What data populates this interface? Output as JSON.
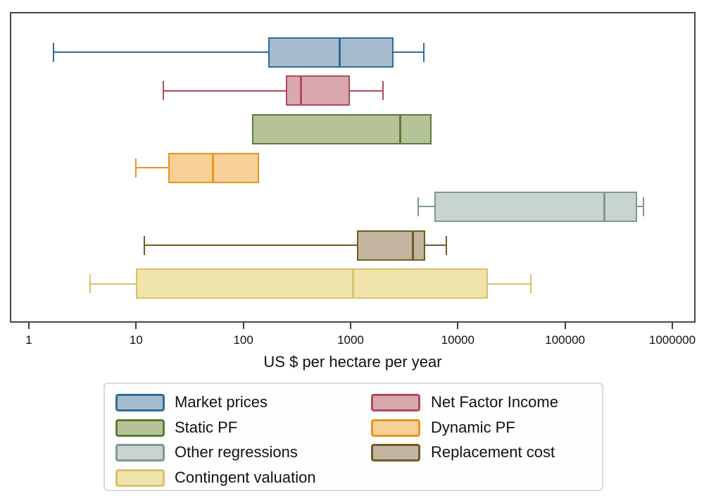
{
  "chart_data": {
    "type": "box",
    "orientation": "horizontal",
    "xlabel": "US $ per hectare per year",
    "x_scale": "log10",
    "x_range": [
      1,
      1000000
    ],
    "x_tick_labels": [
      "1",
      "10",
      "100",
      "1000",
      "10000",
      "100000",
      "1000000"
    ],
    "x_tick_values": [
      1,
      10,
      100,
      1000,
      10000,
      100000,
      1000000
    ],
    "grid": false,
    "legend_position": "bottom",
    "legend_columns": 2,
    "series": [
      {
        "name": "Market prices",
        "fill": "#a7bbce",
        "stroke": "#2e6d97",
        "whisker_low": 1.7,
        "q1": 170,
        "median": 780,
        "q3": 2500,
        "whisker_high": 4800
      },
      {
        "name": "Net Factor Income",
        "fill": "#d9a8af",
        "stroke": "#b04a5c",
        "whisker_low": 18,
        "q1": 250,
        "median": 340,
        "q3": 980,
        "whisker_high": 2000
      },
      {
        "name": "Static PF",
        "fill": "#b6c29a",
        "stroke": "#5e7c33",
        "whisker_low": 120,
        "q1": 120,
        "median": 2900,
        "q3": 5700,
        "whisker_high": 5700
      },
      {
        "name": "Dynamic PF",
        "fill": "#f7d097",
        "stroke": "#e8951c",
        "whisker_low": 10,
        "q1": 20,
        "median": 52,
        "q3": 140,
        "whisker_high": 140
      },
      {
        "name": "Other regressions",
        "fill": "#c7d4cf",
        "stroke": "#81978f",
        "whisker_low": 4300,
        "q1": 6000,
        "median": 230000,
        "q3": 470000,
        "whisker_high": 540000
      },
      {
        "name": "Replacement cost",
        "fill": "#c3b59f",
        "stroke": "#6e5c25",
        "whisker_low": 12,
        "q1": 1150,
        "median": 3800,
        "q3": 5000,
        "whisker_high": 7800
      },
      {
        "name": "Contingent valuation",
        "fill": "#f0e3ac",
        "stroke": "#d8c26c",
        "whisker_low": 3.7,
        "q1": 10,
        "median": 1050,
        "q3": 19000,
        "whisker_high": 48000
      }
    ]
  }
}
